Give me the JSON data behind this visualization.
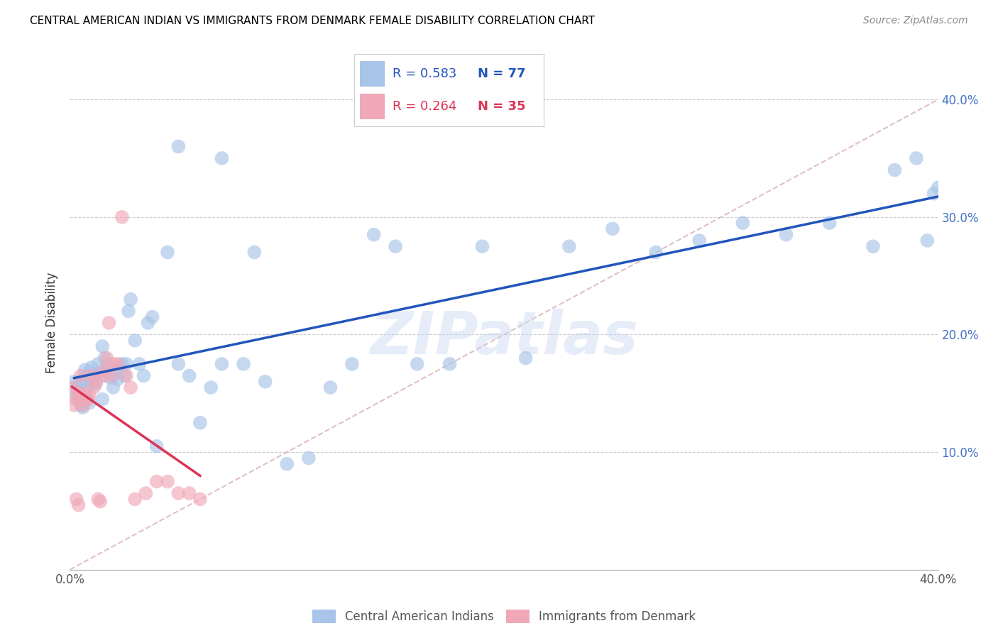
{
  "title": "CENTRAL AMERICAN INDIAN VS IMMIGRANTS FROM DENMARK FEMALE DISABILITY CORRELATION CHART",
  "source": "Source: ZipAtlas.com",
  "ylabel": "Female Disability",
  "xlim": [
    0.0,
    0.4
  ],
  "ylim": [
    0.0,
    0.42
  ],
  "ytick_values": [
    0.0,
    0.1,
    0.2,
    0.3,
    0.4
  ],
  "xtick_values": [
    0.0,
    0.1,
    0.2,
    0.3,
    0.4
  ],
  "blue_color": "#A8C4E8",
  "pink_color": "#F0A8B8",
  "blue_line_color": "#2255BB",
  "pink_line_color": "#DD3355",
  "diag_line_color": "#DDB8C0",
  "watermark": "ZIPatlas",
  "legend_r1": "R = 0.583",
  "legend_n1": "N = 77",
  "legend_r2": "R = 0.264",
  "legend_n2": "N = 35",
  "blue_points_x": [
    0.002,
    0.003,
    0.003,
    0.004,
    0.004,
    0.005,
    0.005,
    0.006,
    0.006,
    0.007,
    0.007,
    0.008,
    0.008,
    0.009,
    0.009,
    0.01,
    0.01,
    0.011,
    0.012,
    0.013,
    0.014,
    0.015,
    0.015,
    0.016,
    0.016,
    0.017,
    0.018,
    0.019,
    0.02,
    0.021,
    0.022,
    0.023,
    0.024,
    0.025,
    0.026,
    0.027,
    0.028,
    0.03,
    0.032,
    0.034,
    0.036,
    0.038,
    0.04,
    0.045,
    0.05,
    0.055,
    0.06,
    0.065,
    0.07,
    0.08,
    0.09,
    0.1,
    0.11,
    0.12,
    0.13,
    0.14,
    0.15,
    0.16,
    0.175,
    0.19,
    0.21,
    0.23,
    0.25,
    0.27,
    0.29,
    0.31,
    0.33,
    0.35,
    0.37,
    0.38,
    0.39,
    0.395,
    0.398,
    0.4,
    0.05,
    0.07,
    0.085
  ],
  "blue_points_y": [
    0.16,
    0.155,
    0.148,
    0.152,
    0.145,
    0.158,
    0.14,
    0.163,
    0.138,
    0.162,
    0.17,
    0.155,
    0.145,
    0.168,
    0.142,
    0.172,
    0.16,
    0.165,
    0.158,
    0.175,
    0.168,
    0.19,
    0.145,
    0.18,
    0.165,
    0.17,
    0.175,
    0.163,
    0.155,
    0.168,
    0.162,
    0.172,
    0.175,
    0.165,
    0.175,
    0.22,
    0.23,
    0.195,
    0.175,
    0.165,
    0.21,
    0.215,
    0.105,
    0.27,
    0.175,
    0.165,
    0.125,
    0.155,
    0.175,
    0.175,
    0.16,
    0.09,
    0.095,
    0.155,
    0.175,
    0.285,
    0.275,
    0.175,
    0.175,
    0.275,
    0.18,
    0.275,
    0.29,
    0.27,
    0.28,
    0.295,
    0.285,
    0.295,
    0.275,
    0.34,
    0.35,
    0.28,
    0.32,
    0.325,
    0.36,
    0.35,
    0.27
  ],
  "pink_points_x": [
    0.001,
    0.002,
    0.003,
    0.003,
    0.004,
    0.004,
    0.005,
    0.005,
    0.006,
    0.006,
    0.007,
    0.008,
    0.009,
    0.01,
    0.011,
    0.012,
    0.013,
    0.014,
    0.015,
    0.016,
    0.017,
    0.018,
    0.019,
    0.02,
    0.022,
    0.024,
    0.026,
    0.028,
    0.03,
    0.035,
    0.04,
    0.045,
    0.05,
    0.055,
    0.06
  ],
  "pink_points_y": [
    0.155,
    0.14,
    0.145,
    0.06,
    0.15,
    0.055,
    0.165,
    0.145,
    0.145,
    0.14,
    0.15,
    0.145,
    0.148,
    0.165,
    0.155,
    0.16,
    0.06,
    0.058,
    0.165,
    0.17,
    0.18,
    0.21,
    0.165,
    0.175,
    0.175,
    0.3,
    0.165,
    0.155,
    0.06,
    0.065,
    0.075,
    0.075,
    0.065,
    0.065,
    0.06
  ]
}
